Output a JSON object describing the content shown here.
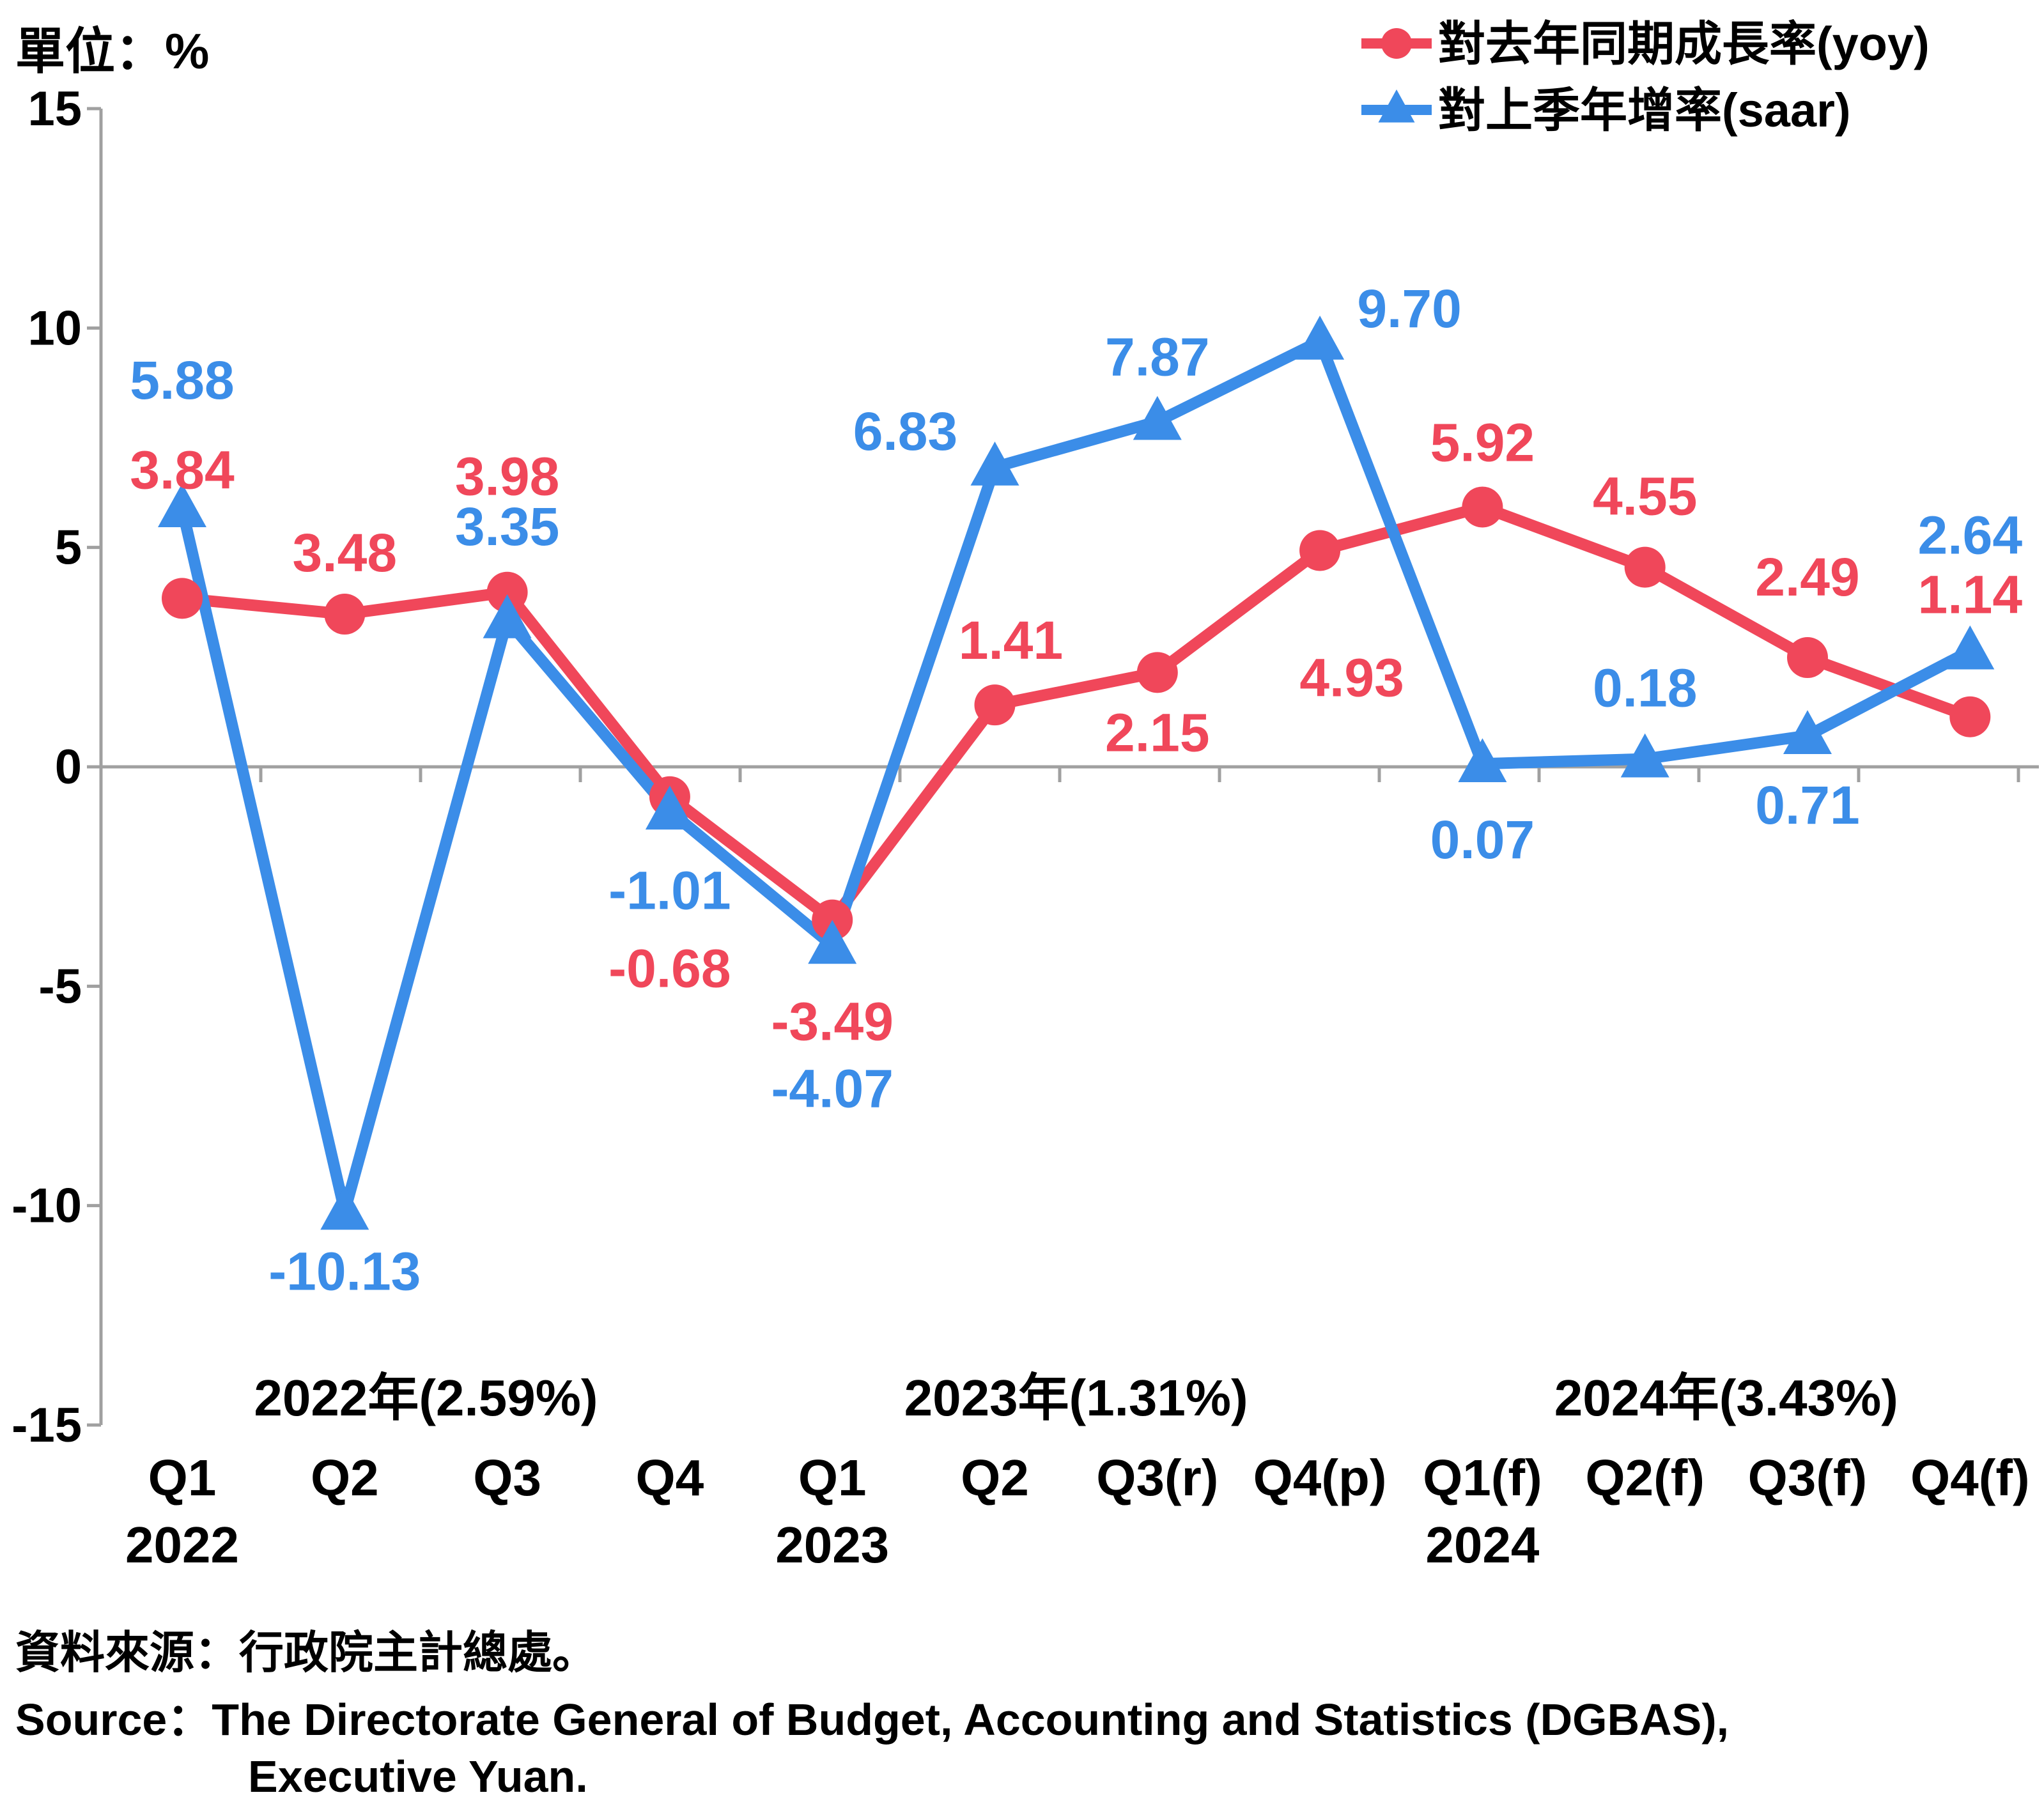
{
  "unit_label": "單位：%",
  "source_zh": "資料來源：行政院主計總處。",
  "source_en_1": "Source：The Directorate General of Budget, Accounting and Statistics (DGBAS),",
  "source_en_2": "Executive Yuan.",
  "chart_data": {
    "type": "line",
    "title": "",
    "categories": [
      "Q1",
      "Q2",
      "Q3",
      "Q4",
      "Q1",
      "Q2",
      "Q3(r)",
      "Q4(p)",
      "Q1(f)",
      "Q2(f)",
      "Q3(f)",
      "Q4(f)"
    ],
    "year_labels": [
      {
        "index": 0,
        "text": "2022"
      },
      {
        "index": 4,
        "text": "2023"
      },
      {
        "index": 8,
        "text": "2024"
      }
    ],
    "annual_labels": [
      {
        "center_index": 1.5,
        "text": "2022年(2.59%)"
      },
      {
        "center_index": 5.5,
        "text": "2023年(1.31%)"
      },
      {
        "center_index": 9.5,
        "text": "2024年(3.43%)"
      }
    ],
    "ylim": [
      -15,
      15
    ],
    "yticks": [
      15,
      10,
      5,
      0,
      -5,
      -10,
      -15
    ],
    "legend_position": "top-right",
    "series": [
      {
        "name": "對去年同期成長率(yoy)",
        "color": "#f0475a",
        "marker": "circle",
        "values": [
          3.84,
          3.48,
          3.98,
          -0.68,
          -3.49,
          1.41,
          2.15,
          4.93,
          5.92,
          4.55,
          2.49,
          1.14
        ],
        "labels": [
          "3.84",
          "3.48",
          "3.98",
          "-0.68",
          "-3.49",
          "1.41",
          "2.15",
          "4.93",
          "5.92",
          "4.55",
          "2.49",
          "1.14"
        ]
      },
      {
        "name": "對上季年增率(saar)",
        "color": "#3b8de8",
        "marker": "triangle",
        "values": [
          5.88,
          -10.13,
          3.35,
          -1.01,
          -4.07,
          6.83,
          7.87,
          9.7,
          0.07,
          0.18,
          0.71,
          2.64
        ],
        "labels": [
          "5.88",
          "-10.13",
          "3.35",
          "-1.01",
          "-4.07",
          "6.83",
          "7.87",
          "9.70",
          "0.07",
          "0.18",
          "0.71",
          "2.64"
        ]
      }
    ]
  }
}
